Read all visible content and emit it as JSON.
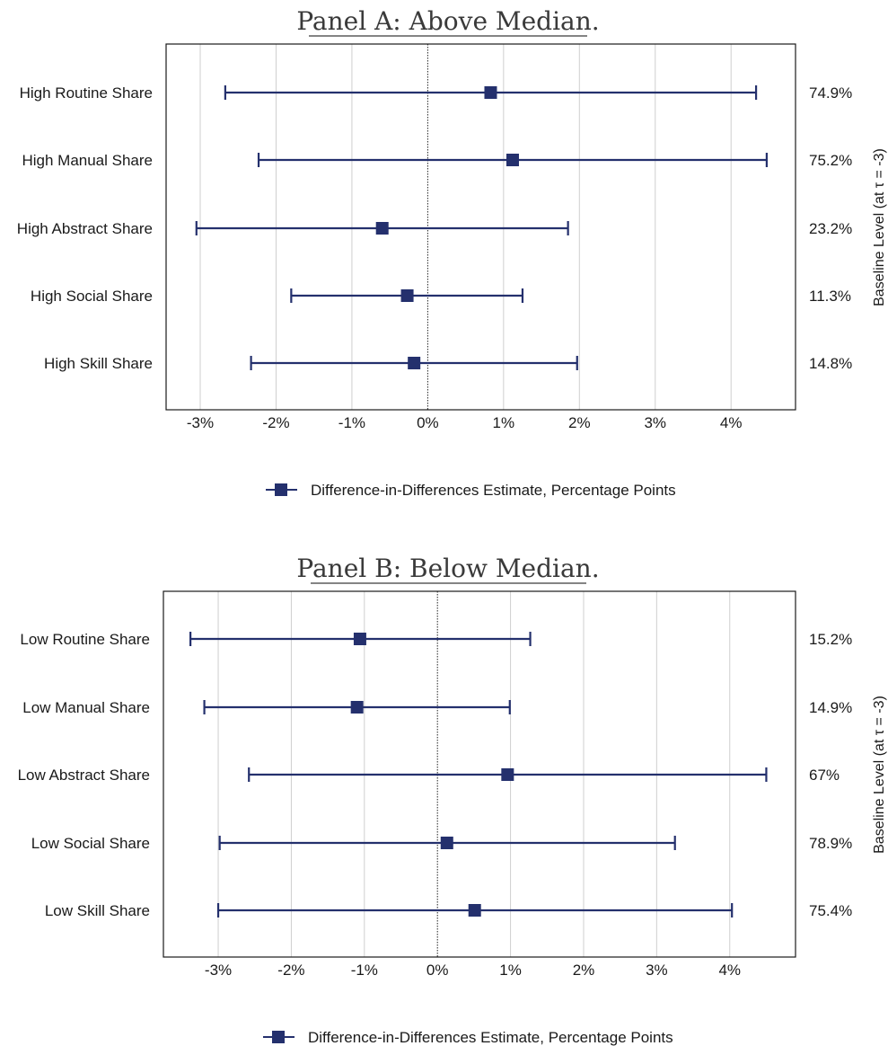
{
  "chart_data": [
    {
      "type": "errorbar",
      "title": "Panel A: Above Median.",
      "categories": [
        "High Routine Share",
        "High Manual Share",
        "High Abstract Share",
        "High Social Share",
        "High Skill Share"
      ],
      "estimates": [
        0.83,
        1.12,
        -0.6,
        -0.27,
        -0.18
      ],
      "ci_low": [
        -2.67,
        -2.23,
        -3.05,
        -1.8,
        -2.33
      ],
      "ci_high": [
        4.33,
        4.47,
        1.85,
        1.25,
        1.97
      ],
      "baseline_labels": [
        "74.9%",
        "75.2%",
        "23.2%",
        "11.3%",
        "14.8%"
      ],
      "baseline_axis_label": "Baseline Level (at τ = -3)",
      "xlim": [
        -3.45,
        4.85
      ],
      "xticks": [
        -3,
        -2,
        -1,
        0,
        1,
        2,
        3,
        4
      ],
      "xtick_labels": [
        "-3%",
        "-2%",
        "-1%",
        "0%",
        "1%",
        "2%",
        "3%",
        "4%"
      ],
      "legend": "Difference-in-Differences Estimate, Percentage Points",
      "legend_position": "bottom-center",
      "grid": "vertical",
      "color": "#24306d"
    },
    {
      "type": "errorbar",
      "title": "Panel B: Below Median.",
      "categories": [
        "Low Routine Share",
        "Low Manual Share",
        "Low Abstract Share",
        "Low Social Share",
        "Low Skill Share"
      ],
      "estimates": [
        -1.06,
        -1.1,
        0.96,
        0.13,
        0.51
      ],
      "ci_low": [
        -3.38,
        -3.19,
        -2.58,
        -2.98,
        -3.0
      ],
      "ci_high": [
        1.27,
        0.99,
        4.5,
        3.25,
        4.03
      ],
      "baseline_labels": [
        "15.2%",
        "14.9%",
        "67%",
        "78.9%",
        "75.4%"
      ],
      "baseline_axis_label": "Baseline Level (at τ = -3)",
      "xlim": [
        -3.75,
        4.9
      ],
      "xticks": [
        -3,
        -2,
        -1,
        0,
        1,
        2,
        3,
        4
      ],
      "xtick_labels": [
        "-3%",
        "-2%",
        "-1%",
        "0%",
        "1%",
        "2%",
        "3%",
        "4%"
      ],
      "legend": "Difference-in-Differences Estimate, Percentage Points",
      "legend_position": "bottom-center",
      "grid": "vertical",
      "color": "#24306d"
    }
  ]
}
